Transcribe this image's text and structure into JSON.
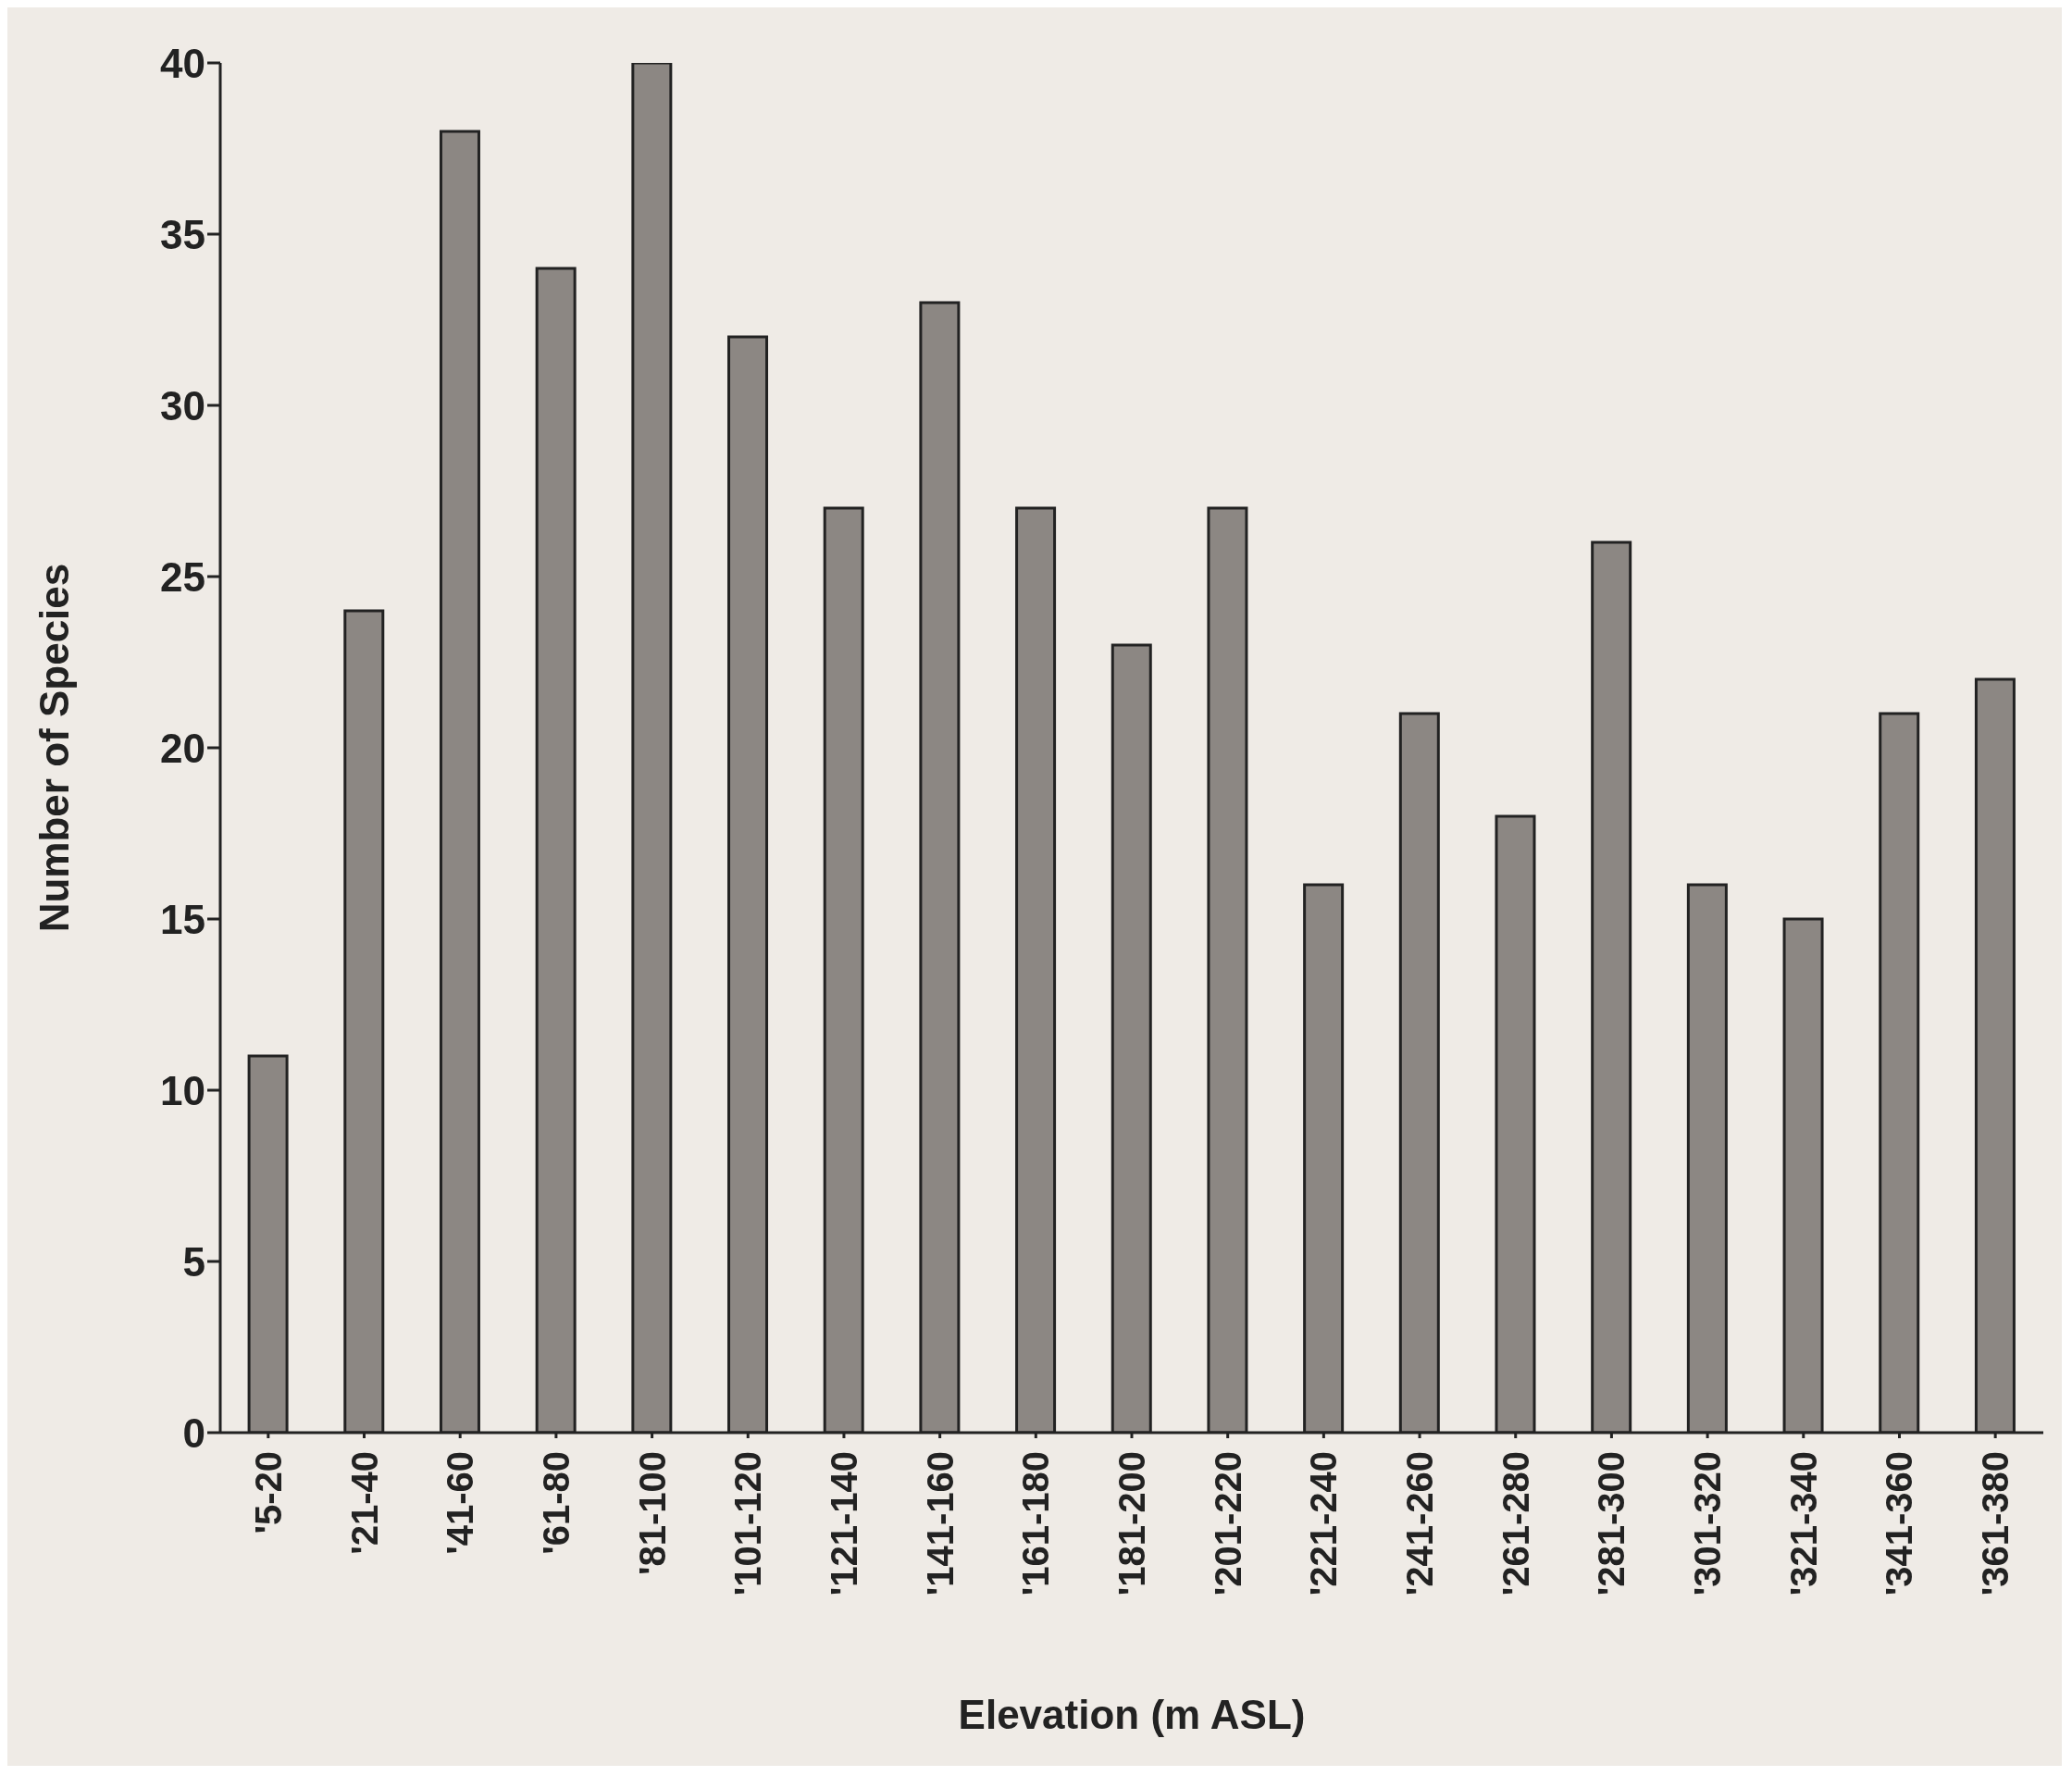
{
  "chart_data": {
    "type": "bar",
    "xlabel": "Elevation (m ASL)",
    "ylabel": "Number of Species",
    "categories": [
      "'5-20",
      "'21-40",
      "'41-60",
      "'61-80",
      "'81-100",
      "'101-120",
      "'121-140",
      "'141-160",
      "'161-180",
      "'181-200",
      "'201-220",
      "'221-240",
      "'241-260",
      "'261-280",
      "'281-300",
      "'301-320",
      "'321-340",
      "'341-360",
      "'361-380"
    ],
    "values": [
      11,
      24,
      38,
      34,
      40,
      32,
      27,
      33,
      27,
      23,
      27,
      16,
      21,
      18,
      26,
      16,
      15,
      21,
      22
    ],
    "color": "#8c8783",
    "ylim": [
      0,
      40
    ],
    "yticks": [
      0,
      5,
      10,
      15,
      20,
      25,
      30,
      35,
      40
    ],
    "grid": false,
    "legend": false
  }
}
